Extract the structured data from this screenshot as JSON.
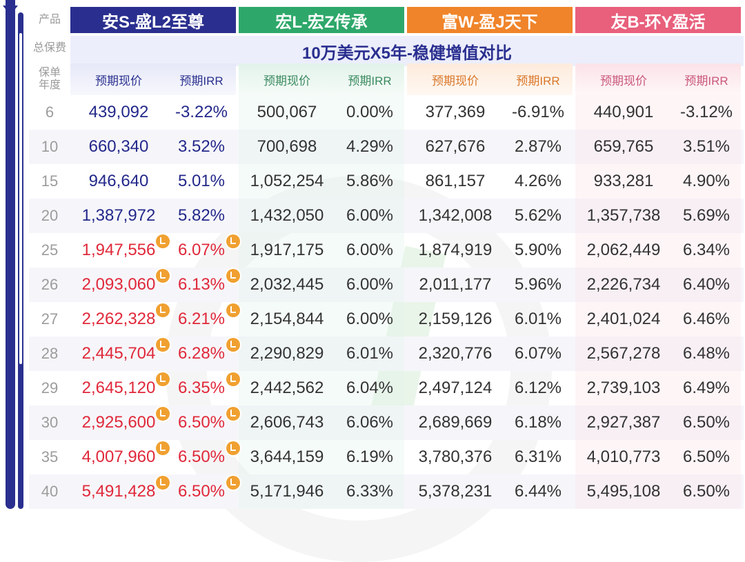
{
  "labels": {
    "product": "产品",
    "premium": "总保费",
    "year_line1": "保单",
    "year_line2": "年度"
  },
  "products": [
    {
      "name": "安S-盛L2至尊",
      "color": "#2a2f8f"
    },
    {
      "name": "宏L-宏Z传承",
      "color": "#2ea86a"
    },
    {
      "name": "富W-盈J天下",
      "color": "#f0842a"
    },
    {
      "name": "友B-环Y盈活",
      "color": "#e8607c"
    }
  ],
  "banner": "10万美元X5年-稳健增值对比",
  "sub_headers": {
    "value": "预期现价",
    "irr": "预期IRR"
  },
  "rows": [
    {
      "year": "6",
      "vals": [
        "439,092",
        "-3.22%",
        "500,067",
        "0.00%",
        "377,369",
        "-6.91%",
        "440,901",
        "-3.12%"
      ],
      "winner": false
    },
    {
      "year": "10",
      "vals": [
        "660,340",
        "3.52%",
        "700,698",
        "4.29%",
        "627,676",
        "2.87%",
        "659,765",
        "3.51%"
      ],
      "winner": false
    },
    {
      "year": "15",
      "vals": [
        "946,640",
        "5.01%",
        "1,052,254",
        "5.86%",
        "861,157",
        "4.26%",
        "933,281",
        "4.90%"
      ],
      "winner": false
    },
    {
      "year": "20",
      "vals": [
        "1,387,972",
        "5.82%",
        "1,432,050",
        "6.00%",
        "1,342,008",
        "5.62%",
        "1,357,738",
        "5.69%"
      ],
      "winner": false
    },
    {
      "year": "25",
      "vals": [
        "1,947,556",
        "6.07%",
        "1,917,175",
        "6.00%",
        "1,874,919",
        "5.90%",
        "2,062,449",
        "6.34%"
      ],
      "winner": true
    },
    {
      "year": "26",
      "vals": [
        "2,093,060",
        "6.13%",
        "2,032,445",
        "6.00%",
        "2,011,177",
        "5.96%",
        "2,226,734",
        "6.40%"
      ],
      "winner": true
    },
    {
      "year": "27",
      "vals": [
        "2,262,328",
        "6.21%",
        "2,154,844",
        "6.00%",
        "2,159,126",
        "6.01%",
        "2,401,024",
        "6.46%"
      ],
      "winner": true
    },
    {
      "year": "28",
      "vals": [
        "2,445,704",
        "6.28%",
        "2,290,829",
        "6.01%",
        "2,320,776",
        "6.07%",
        "2,567,278",
        "6.48%"
      ],
      "winner": true
    },
    {
      "year": "29",
      "vals": [
        "2,645,120",
        "6.35%",
        "2,442,562",
        "6.04%",
        "2,497,124",
        "6.12%",
        "2,739,103",
        "6.49%"
      ],
      "winner": true
    },
    {
      "year": "30",
      "vals": [
        "2,925,600",
        "6.50%",
        "2,606,743",
        "6.06%",
        "2,689,669",
        "6.18%",
        "2,927,387",
        "6.50%"
      ],
      "winner": true
    },
    {
      "year": "35",
      "vals": [
        "4,007,960",
        "6.50%",
        "3,644,159",
        "6.19%",
        "3,780,376",
        "6.31%",
        "4,010,773",
        "6.50%"
      ],
      "winner": true
    },
    {
      "year": "40",
      "vals": [
        "5,491,428",
        "6.50%",
        "5,171,946",
        "6.33%",
        "5,378,231",
        "6.44%",
        "5,495,108",
        "6.50%"
      ],
      "winner": true
    }
  ],
  "colors": {
    "winner_text": "#e0283a",
    "primary_text": "#23288a",
    "badge": "#f0a030"
  },
  "icons": {
    "badge": "thumbs-up-icon"
  }
}
